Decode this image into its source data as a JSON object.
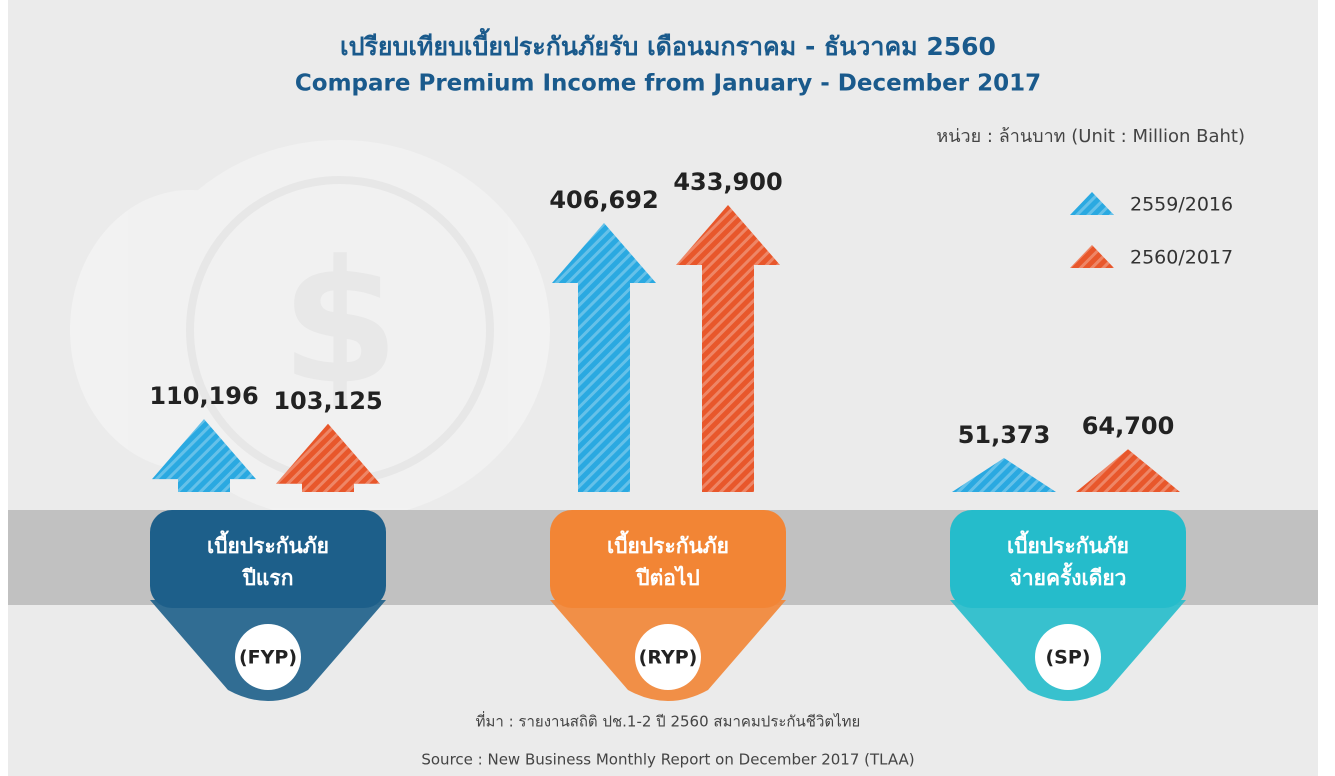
{
  "chart_data": {
    "type": "bar",
    "title": "เปรียบเทียบเบี้ยประกันภัยรับ เดือนมกราคม - ธันวาคม 2560",
    "subtitle": "Compare Premium Income from January - December 2017",
    "unit_note": "หน่วย  : ล้านบาท (Unit : Million Baht)",
    "categories": [
      "(FYP)",
      "(RYP)",
      "(SP)"
    ],
    "category_descriptions": [
      [
        "เบี้ยประกันภัย",
        "ปีแรก"
      ],
      [
        "เบี้ยประกันภัย",
        "ปีต่อไป"
      ],
      [
        "เบี้ยประกันภัย",
        "จ่ายครั้งเดียว"
      ]
    ],
    "category_colors": [
      "#1d5f8a",
      "#f28535",
      "#25bccb"
    ],
    "series": [
      {
        "name": "2559/2016",
        "color": "#2aa9e1",
        "values": [
          110196,
          406692,
          51373
        ],
        "value_labels": [
          "110,196",
          "406,692",
          "51,373"
        ]
      },
      {
        "name": "2560/2017",
        "color": "#e8572b",
        "values": [
          103125,
          433900,
          64700
        ],
        "value_labels": [
          "103,125",
          "433,900",
          "64,700"
        ]
      }
    ],
    "source": "ที่มา : รายงานสถิติ ปช.1-2 ปี 2560 สมาคมประกันชีวิตไทย",
    "source_en": "Source : New Business Monthly Report on December 2017 (TLAA)"
  }
}
